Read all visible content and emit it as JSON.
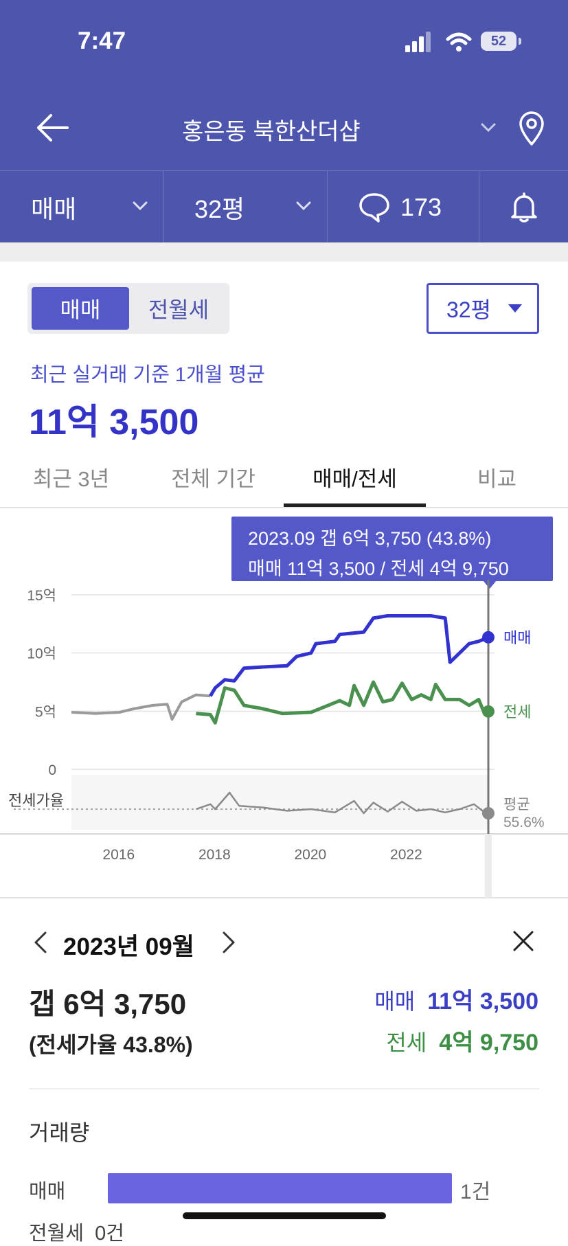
{
  "status_bar": {
    "time": "7:47",
    "battery": "52"
  },
  "nav": {
    "title": "홍은동 북한산더샵"
  },
  "filters": {
    "trade_type": "매매",
    "size": "32평",
    "comment_count": "173"
  },
  "segment": {
    "active": "매매",
    "inactive": "전월세"
  },
  "size_select": {
    "value": "32평"
  },
  "summary": {
    "subtitle": "최근 실거래 기준 1개월 평균",
    "price": "11억 3,500"
  },
  "tabs": [
    {
      "label": "최근 3년"
    },
    {
      "label": "전체 기간"
    },
    {
      "label": "매매/전세",
      "active": true
    },
    {
      "label": "비교"
    }
  ],
  "tooltip": {
    "line1": "2023.09  갭 6억 3,750 (43.8%)",
    "line2": "매매 11억 3,500 / 전세 4억 9,750"
  },
  "chart_data": {
    "type": "line",
    "y_ticks": [
      "15억",
      "10억",
      "5억",
      "0"
    ],
    "ylim": [
      0,
      15
    ],
    "x_ticks": [
      "2016",
      "2018",
      "2020",
      "2022"
    ],
    "ratio_label": "전세가율",
    "ratio_avg_label": "평균",
    "ratio_avg_value": "55.6%",
    "series": [
      {
        "name": "매매",
        "color": "#3232d0",
        "points": [
          [
            2015.0,
            4.9
          ],
          [
            2015.5,
            4.8
          ],
          [
            2016.0,
            4.9
          ],
          [
            2016.3,
            5.2
          ],
          [
            2016.7,
            5.5
          ],
          [
            2017.0,
            5.6
          ],
          [
            2017.1,
            4.3
          ],
          [
            2017.3,
            5.8
          ],
          [
            2017.6,
            6.4
          ],
          [
            2017.9,
            6.3
          ],
          [
            2018.0,
            7.0
          ],
          [
            2018.2,
            7.7
          ],
          [
            2018.4,
            7.6
          ],
          [
            2018.6,
            8.7
          ],
          [
            2019.0,
            8.8
          ],
          [
            2019.5,
            8.9
          ],
          [
            2019.7,
            9.7
          ],
          [
            2020.0,
            10.0
          ],
          [
            2020.1,
            10.8
          ],
          [
            2020.5,
            11.0
          ],
          [
            2020.6,
            11.6
          ],
          [
            2021.1,
            11.8
          ],
          [
            2021.3,
            13.0
          ],
          [
            2021.6,
            13.2
          ],
          [
            2022.0,
            13.2
          ],
          [
            2022.5,
            13.2
          ],
          [
            2022.8,
            13.0
          ],
          [
            2022.9,
            9.2
          ],
          [
            2023.1,
            10.0
          ],
          [
            2023.3,
            10.8
          ],
          [
            2023.5,
            11.0
          ],
          [
            2023.7,
            11.35
          ]
        ]
      },
      {
        "name": "전세",
        "color": "#4a9150",
        "points": [
          [
            2017.6,
            4.8
          ],
          [
            2017.9,
            4.7
          ],
          [
            2018.0,
            4.0
          ],
          [
            2018.2,
            7.0
          ],
          [
            2018.4,
            6.8
          ],
          [
            2018.6,
            5.5
          ],
          [
            2019.0,
            5.2
          ],
          [
            2019.4,
            4.8
          ],
          [
            2020.0,
            4.9
          ],
          [
            2020.3,
            5.4
          ],
          [
            2020.6,
            5.9
          ],
          [
            2020.8,
            5.5
          ],
          [
            2020.9,
            7.2
          ],
          [
            2021.1,
            5.5
          ],
          [
            2021.3,
            7.5
          ],
          [
            2021.5,
            5.8
          ],
          [
            2021.7,
            6.0
          ],
          [
            2021.9,
            7.4
          ],
          [
            2022.1,
            6.0
          ],
          [
            2022.3,
            6.4
          ],
          [
            2022.5,
            6.0
          ],
          [
            2022.6,
            7.3
          ],
          [
            2022.8,
            6.0
          ],
          [
            2023.1,
            6.0
          ],
          [
            2023.3,
            5.5
          ],
          [
            2023.5,
            6.0
          ],
          [
            2023.6,
            5.0
          ],
          [
            2023.7,
            4.975
          ]
        ]
      },
      {
        "name": "전세가율",
        "color": "#8a8a8a",
        "points": [
          [
            2017.6,
            0.0
          ],
          [
            2017.9,
            0.6
          ],
          [
            2018.0,
            0.0
          ],
          [
            2018.3,
            2.0
          ],
          [
            2018.5,
            0.4
          ],
          [
            2019.0,
            0.2
          ],
          [
            2019.5,
            -0.2
          ],
          [
            2020.0,
            0.0
          ],
          [
            2020.5,
            -0.4
          ],
          [
            2020.9,
            1.0
          ],
          [
            2021.1,
            -0.5
          ],
          [
            2021.3,
            0.8
          ],
          [
            2021.6,
            -0.3
          ],
          [
            2021.9,
            0.9
          ],
          [
            2022.2,
            -0.2
          ],
          [
            2022.5,
            0.0
          ],
          [
            2022.8,
            -0.4
          ],
          [
            2023.1,
            0.0
          ],
          [
            2023.4,
            0.6
          ],
          [
            2023.6,
            -0.3
          ],
          [
            2023.7,
            -0.5
          ]
        ]
      }
    ],
    "series_labels": {
      "sale": "매매",
      "jeonse": "전세"
    },
    "selected_x": 2023.7
  },
  "detail": {
    "date": "2023년 09월",
    "gap_price": "갭 6억 3,750",
    "gap_ratio": "(전세가율 43.8%)",
    "sale_label": "매매",
    "sale_value": "11억 3,500",
    "jeonse_label": "전세",
    "jeonse_value": "4억 9,750"
  },
  "volume": {
    "title": "거래량",
    "sale_label": "매매",
    "sale_count": "1건",
    "sale_fraction": 1.0,
    "rent_label": "전월세",
    "rent_count": "0건"
  },
  "colors": {
    "header": "#4e55ad",
    "accent": "#5458c8",
    "sale": "#3232d0",
    "jeonse": "#4a9150"
  }
}
